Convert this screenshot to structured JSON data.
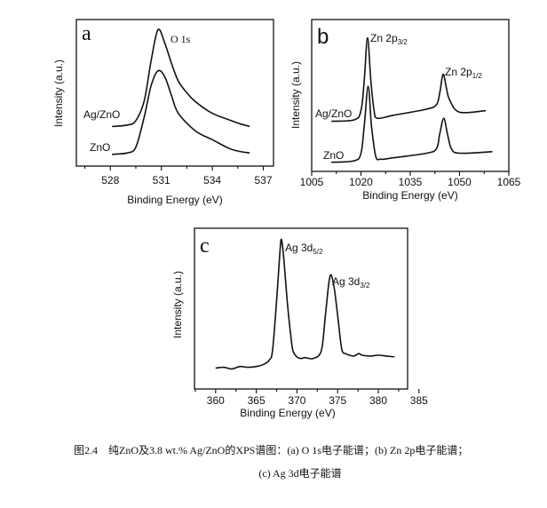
{
  "chart_data": [
    {
      "type": "line",
      "panel_letter": "a",
      "annotation": "O 1s",
      "xlabel": "Binding Energy (eV)",
      "ylabel": "Intensity (a.u.)",
      "xlim": [
        526,
        537.6
      ],
      "ylim": [
        0,
        100
      ],
      "xticks": [
        528,
        531,
        534,
        537
      ],
      "minor_step": 1.5,
      "series": [
        {
          "name": "Ag/ZnO",
          "x": [
            528.1,
            529,
            529.5,
            530,
            530.4,
            530.8,
            531.2,
            531.6,
            532,
            532.5,
            533,
            534,
            535,
            535.6,
            536.2
          ],
          "y": [
            27,
            28,
            31,
            45,
            72,
            93,
            84,
            70,
            58,
            50,
            44,
            36,
            31.5,
            29,
            27
          ]
        },
        {
          "name": "ZnO",
          "x": [
            528.1,
            529,
            529.5,
            530,
            530.4,
            530.8,
            531.2,
            531.6,
            532,
            533,
            534,
            535,
            535.6,
            536.2
          ],
          "y": [
            8,
            9,
            13,
            34,
            55,
            65,
            61,
            48,
            36,
            24,
            18,
            12,
            10,
            9
          ]
        }
      ]
    },
    {
      "type": "line",
      "panel_letter": "b",
      "annotations": [
        {
          "text": "Zn 2p",
          "sub": "3/2"
        },
        {
          "text": "Zn 2p",
          "sub": "1/2"
        }
      ],
      "xlabel": "Binding Energy (eV)",
      "ylabel": "Intensity (a.u.)",
      "xlim": [
        1005,
        1065
      ],
      "ylim": [
        0,
        100
      ],
      "xticks": [
        1005,
        1020,
        1035,
        1050,
        1065
      ],
      "minor_step": 7.5,
      "series": [
        {
          "name": "Ag/ZnO",
          "x": [
            1011,
            1018,
            1020,
            1021,
            1022,
            1023,
            1024,
            1025,
            1030,
            1040,
            1043,
            1044,
            1045,
            1046,
            1047,
            1050,
            1058
          ],
          "y": [
            33,
            34,
            40,
            60,
            88,
            60,
            40,
            35,
            37,
            41,
            44,
            52,
            64,
            55,
            47,
            39,
            40
          ]
        },
        {
          "name": "ZnO",
          "x": [
            1011,
            1018,
            1020,
            1021,
            1022.2,
            1023.2,
            1024.5,
            1026,
            1030,
            1040,
            1043,
            1044,
            1045.2,
            1046.3,
            1047.5,
            1050,
            1060
          ],
          "y": [
            6,
            7,
            12,
            30,
            56,
            30,
            10,
            8,
            9,
            12,
            15,
            25,
            35,
            25,
            15,
            12,
            13
          ]
        }
      ]
    },
    {
      "type": "line",
      "panel_letter": "c",
      "annotations": [
        {
          "text": "Ag 3d",
          "sub": "5/2"
        },
        {
          "text": "Ag 3d",
          "sub": "3/2"
        }
      ],
      "xlabel": "Binding Energy (eV)",
      "ylabel": "Intensity (a.u.)",
      "xlim": [
        357.4,
        383.6
      ],
      "ylim": [
        0,
        100
      ],
      "xticks": [
        360,
        365,
        370,
        375,
        380,
        385
      ],
      "minor_step": 2.5,
      "series": [
        {
          "name": "Ag 3d",
          "x": [
            360,
            361,
            362,
            363,
            364,
            365,
            366,
            366.6,
            367,
            367.5,
            367.9,
            368.1,
            368.4,
            368.8,
            369.2,
            369.5,
            370,
            370.5,
            371,
            372,
            373,
            373.5,
            373.9,
            374.2,
            374.6,
            375,
            375.5,
            376,
            376.5,
            377,
            377.6,
            378,
            379,
            380,
            381,
            382
          ],
          "y": [
            13,
            13.5,
            12.5,
            14,
            13.5,
            14,
            15.5,
            18,
            24,
            55,
            85,
            93,
            80,
            55,
            35,
            24,
            20,
            19,
            19.5,
            19,
            24,
            46,
            65,
            71,
            62,
            46,
            25,
            22,
            21,
            20.5,
            22,
            21,
            20.5,
            21,
            20.5,
            20
          ]
        }
      ]
    }
  ],
  "caption": {
    "line1": "图2.4　纯ZnO及3.8 wt.% Ag/ZnO的XPS谱图：(a) O 1s电子能谱；(b) Zn 2p电子能谱；",
    "line2": "(c) Ag 3d电子能谱"
  }
}
